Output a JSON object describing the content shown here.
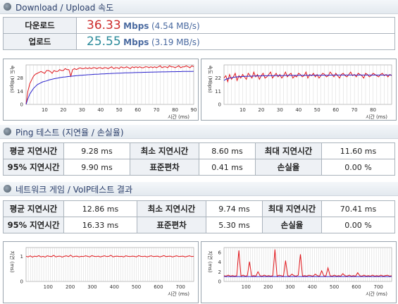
{
  "speed": {
    "section_title": "Download / Upload 속도",
    "download": {
      "label": "다운로드",
      "value": "36.33",
      "unit": "Mbps",
      "mbs": "(4.54 MB/s)",
      "value_color": "#cc2a2a"
    },
    "upload": {
      "label": "업로드",
      "value": "25.55",
      "unit": "Mbps",
      "mbs": "(3.19 MB/s)",
      "value_color": "#2a8a9a"
    }
  },
  "ping": {
    "section_title": "Ping 테스트 (지연율 / 손실율)",
    "rows": [
      [
        {
          "label": "평균 지연시간",
          "value": "9.28 ms"
        },
        {
          "label": "최소 지연시간",
          "value": "8.60 ms"
        },
        {
          "label": "최대 지연시간",
          "value": "11.60 ms"
        }
      ],
      [
        {
          "label": "95% 지연시간",
          "value": "9.90 ms"
        },
        {
          "label": "표준편차",
          "value": "0.41 ms"
        },
        {
          "label": "손실율",
          "value": "0.00 %"
        }
      ]
    ]
  },
  "voip": {
    "section_title": "네트워크 게임 / VoIP테스트 결과",
    "rows": [
      [
        {
          "label": "평균 지연시간",
          "value": "12.86 ms"
        },
        {
          "label": "최소 지연시간",
          "value": "9.74 ms"
        },
        {
          "label": "최대 지연시간",
          "value": "70.41 ms"
        }
      ],
      [
        {
          "label": "95% 지연시간",
          "value": "16.33 ms"
        },
        {
          "label": "표준편차",
          "value": "5.30 ms"
        },
        {
          "label": "손실율",
          "value": "0.00 %"
        }
      ]
    ]
  },
  "colors": {
    "red_series": "#e0161b",
    "blue_series": "#2a22cc",
    "grid": "#c9c9c9",
    "header_text": "#2a3e6a"
  },
  "chart_data": [
    {
      "type": "line",
      "ylabel": "속도 (Mbps)",
      "xlabel": "시간 (ms)",
      "yticks": [
        "0",
        "14",
        "28"
      ],
      "ylim": [
        0,
        42
      ],
      "xticks": [
        "10",
        "20",
        "30",
        "40",
        "50",
        "60",
        "70",
        "80",
        "90"
      ],
      "xlim": [
        0,
        90
      ],
      "series": [
        {
          "values": [
            0,
            14,
            22,
            26,
            30,
            32,
            33,
            34,
            35,
            34,
            33,
            36,
            36,
            35,
            33,
            36,
            35,
            35,
            37,
            36,
            36,
            38,
            37,
            37,
            30,
            37,
            38,
            37,
            38,
            39,
            38,
            38,
            39,
            38,
            39,
            38,
            39,
            39,
            38,
            39,
            39,
            38,
            39,
            39,
            38,
            39,
            40,
            38,
            39,
            39,
            38,
            40,
            39,
            39,
            40,
            39,
            38,
            40,
            39,
            40,
            39,
            40,
            39,
            39,
            40,
            40,
            39,
            40,
            39,
            40,
            39,
            40,
            41,
            39,
            40,
            40,
            39,
            41,
            40,
            40,
            39,
            40,
            41,
            39,
            40,
            40,
            41,
            40,
            39,
            41,
            40
          ]
        },
        {
          "values": [
            0,
            6,
            11,
            14,
            17,
            19,
            21,
            22,
            23,
            24,
            24.5,
            25,
            25.8,
            26.3,
            26.8,
            27.3,
            27.7,
            28,
            28.4,
            28.7,
            29,
            29.2,
            29.5,
            29.7,
            29.9,
            30.1,
            30.3,
            30.5,
            30.7,
            30.9,
            31,
            31.2,
            31.3,
            31.5,
            31.6,
            31.7,
            31.9,
            32,
            32.1,
            32.2,
            32.3,
            32.4,
            32.5,
            32.6,
            32.7,
            32.8,
            32.9,
            33,
            33.1,
            33.2,
            33.2,
            33.3,
            33.4,
            33.5,
            33.5,
            33.6,
            33.7,
            33.7,
            33.8,
            33.8,
            33.9,
            34,
            34,
            34.1,
            34.1,
            34.2,
            34.2,
            34.3,
            34.3,
            34.4,
            34.4,
            34.5,
            34.5,
            34.6,
            34.6,
            34.6,
            34.7,
            34.7,
            34.8,
            34.8,
            34.8,
            34.9,
            34.9,
            34.9,
            35,
            35,
            35,
            35.1,
            35.1,
            35.1,
            35.2
          ]
        }
      ]
    },
    {
      "type": "line",
      "ylabel": "속도 (Mbps)",
      "xlabel": "시간 (ms)",
      "yticks": [
        "0",
        "11",
        "22"
      ],
      "ylim": [
        0,
        33
      ],
      "xticks": [
        "10",
        "20",
        "30",
        "40",
        "50",
        "60",
        "70",
        "80"
      ],
      "xlim": [
        0,
        90
      ],
      "series": [
        {
          "values": [
            22,
            24,
            19,
            25,
            21,
            23,
            26,
            20,
            24,
            22,
            25,
            23,
            21,
            26,
            24,
            22,
            27,
            23,
            25,
            21,
            24,
            26,
            22,
            23,
            25,
            27,
            22,
            24,
            26,
            23,
            25,
            22,
            24,
            27,
            23,
            25,
            26,
            22,
            24,
            23,
            26,
            25,
            23,
            24,
            27,
            22,
            25,
            24,
            26,
            23,
            25,
            22,
            24,
            26,
            25,
            23,
            24,
            27,
            25,
            23,
            26,
            24,
            22,
            25,
            26,
            24,
            23,
            25,
            27,
            24,
            25,
            23,
            26,
            25,
            24,
            22,
            26,
            25,
            23,
            24,
            26,
            25,
            24,
            23,
            25,
            26,
            24,
            25,
            23,
            25,
            24
          ]
        },
        {
          "values": [
            20,
            21,
            21.5,
            22,
            22.3,
            22.6,
            22.8,
            23,
            23.1,
            23.2,
            23.3,
            23.4,
            23.5,
            23.5,
            23.6,
            23.6,
            23.7,
            23.7,
            23.8,
            23.8,
            23.8,
            23.9,
            23.9,
            23.9,
            24,
            24,
            24,
            24,
            24.1,
            24.1,
            24.1,
            24.1,
            24.1,
            24.2,
            24.2,
            24.2,
            24.2,
            24.2,
            24.2,
            24.3,
            24.3,
            24.3,
            24.3,
            24.3,
            24.3,
            24.3,
            24.3,
            24.4,
            24.4,
            24.4,
            24.4,
            24.4,
            24.4,
            24.4,
            24.4,
            24.4,
            24.4,
            24.4,
            24.5,
            24.5,
            24.5,
            24.5,
            24.5,
            24.5,
            24.5,
            24.5,
            24.5,
            24.5,
            24.5,
            24.5,
            24.5,
            24.5,
            24.5,
            24.5,
            24.5,
            24.5,
            24.5,
            24.5,
            24.5,
            24.5,
            24.5,
            24.5,
            24.5,
            24.5,
            24.5,
            24.5,
            24.5,
            24.5,
            24.5,
            24.5,
            24.5
          ]
        }
      ]
    },
    {
      "type": "line",
      "ylabel": "지연 (ms)",
      "xlabel": "시간 (ms)",
      "yticks": [
        "0",
        "1"
      ],
      "ylim": [
        0,
        1.35
      ],
      "xticks": [
        "100",
        "200",
        "300",
        "400",
        "500",
        "600",
        "700"
      ],
      "xlim": [
        0,
        760
      ],
      "series": [
        {
          "values": [
            1.0,
            0.98,
            1.02,
            0.97,
            1.01,
            0.99,
            1.03,
            0.98,
            1.0,
            0.97,
            1.02,
            1.0,
            0.99,
            1.04,
            0.98,
            1.0,
            1.01,
            0.97,
            1.0,
            1.02,
            0.99,
            1.05,
            0.98,
            1.0,
            1.01,
            0.98,
            1.0,
            0.99,
            1.02,
            1.0,
            0.98,
            1.03,
            1.0,
            0.99,
            1.01,
            0.98,
            1.0,
            1.02,
            0.99,
            1.0,
            1.04,
            0.98,
            1.0,
            1.01,
            0.99,
            1.0,
            0.98,
            1.02,
            1.0,
            0.99,
            1.01,
            1.0,
            0.98,
            1.03,
            1.0,
            0.99,
            1.01,
            0.98,
            1.0,
            1.02,
            0.99,
            1.0,
            1.01,
            0.98,
            1.0,
            1.03,
            0.99,
            1.0,
            1.01,
            0.98,
            1.0,
            1.02,
            0.99,
            1.0,
            1.01,
            0.98,
            1.0,
            1.02,
            0.99,
            1.0
          ]
        }
      ]
    },
    {
      "type": "line",
      "ylabel": "지연 (ms)",
      "xlabel": "시간 (ms)",
      "yticks": [
        "0",
        "2",
        "4",
        "6"
      ],
      "ylim": [
        0,
        7
      ],
      "xticks": [
        "100",
        "200",
        "300",
        "400",
        "500",
        "600",
        "700"
      ],
      "xlim": [
        0,
        760
      ],
      "series": [
        {
          "values": [
            1.2,
            1.1,
            1.3,
            1.1,
            1.2,
            1.1,
            1.2,
            6.4,
            1.1,
            1.3,
            1.1,
            1.2,
            4.1,
            1.1,
            1.2,
            1.1,
            2.0,
            1.2,
            1.1,
            1.3,
            1.1,
            1.2,
            1.1,
            1.2,
            6.6,
            1.1,
            1.3,
            1.2,
            1.1,
            4.3,
            1.2,
            1.1,
            1.5,
            1.2,
            1.1,
            1.3,
            5.6,
            1.1,
            1.2,
            1.1,
            1.3,
            1.2,
            1.1,
            1.5,
            1.2,
            1.1,
            2.2,
            1.2,
            1.1,
            2.8,
            1.2,
            1.1,
            1.3,
            1.1,
            1.2,
            1.1,
            1.6,
            1.2,
            1.1,
            1.3,
            1.1,
            1.2,
            1.1,
            1.8,
            1.2,
            1.1,
            1.3,
            1.1,
            1.2,
            1.1,
            1.3,
            1.1,
            1.2,
            1.1,
            1.3,
            1.1,
            1.2,
            1.3,
            1.1,
            1.2
          ]
        },
        {
          "values": [
            1.0,
            1.0,
            1.0,
            1.0,
            1.0,
            1.0,
            1.0,
            1.0,
            1.0,
            1.0,
            1.0,
            1.0,
            1.0,
            1.0,
            1.0,
            1.0,
            1.0,
            1.0,
            1.0,
            1.0,
            1.0,
            1.0,
            1.0,
            1.0,
            1.0,
            1.0,
            1.0,
            1.0,
            1.0,
            1.0,
            1.0,
            1.0,
            1.0,
            1.0,
            1.0,
            1.0,
            1.0,
            1.0,
            1.0,
            1.0,
            1.0,
            1.0,
            1.0,
            1.0,
            1.0,
            1.0,
            1.0,
            1.0,
            1.0,
            1.0,
            1.0,
            1.0,
            1.0,
            1.0,
            1.0,
            1.0,
            1.0,
            1.0,
            1.0,
            1.0,
            1.0,
            1.0,
            1.0,
            1.0,
            1.0,
            1.0,
            1.0,
            1.0,
            1.0,
            1.0,
            1.0,
            1.0,
            1.0,
            1.0,
            1.0,
            1.0,
            1.0,
            1.0,
            1.0,
            1.0
          ]
        }
      ]
    }
  ]
}
